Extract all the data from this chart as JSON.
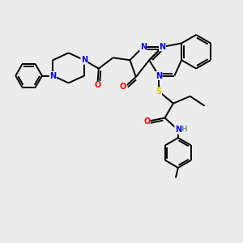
{
  "bg_color": "#ececec",
  "atom_colors": {
    "N": "#0000ee",
    "O": "#ff0000",
    "S": "#cccc00",
    "C": "#000000",
    "H": "#6a9a9a"
  },
  "bond_color": "#000000",
  "bond_width": 1.4,
  "font_size_atom": 7.0,
  "figsize": [
    3.0,
    3.0
  ],
  "dpi": 100
}
